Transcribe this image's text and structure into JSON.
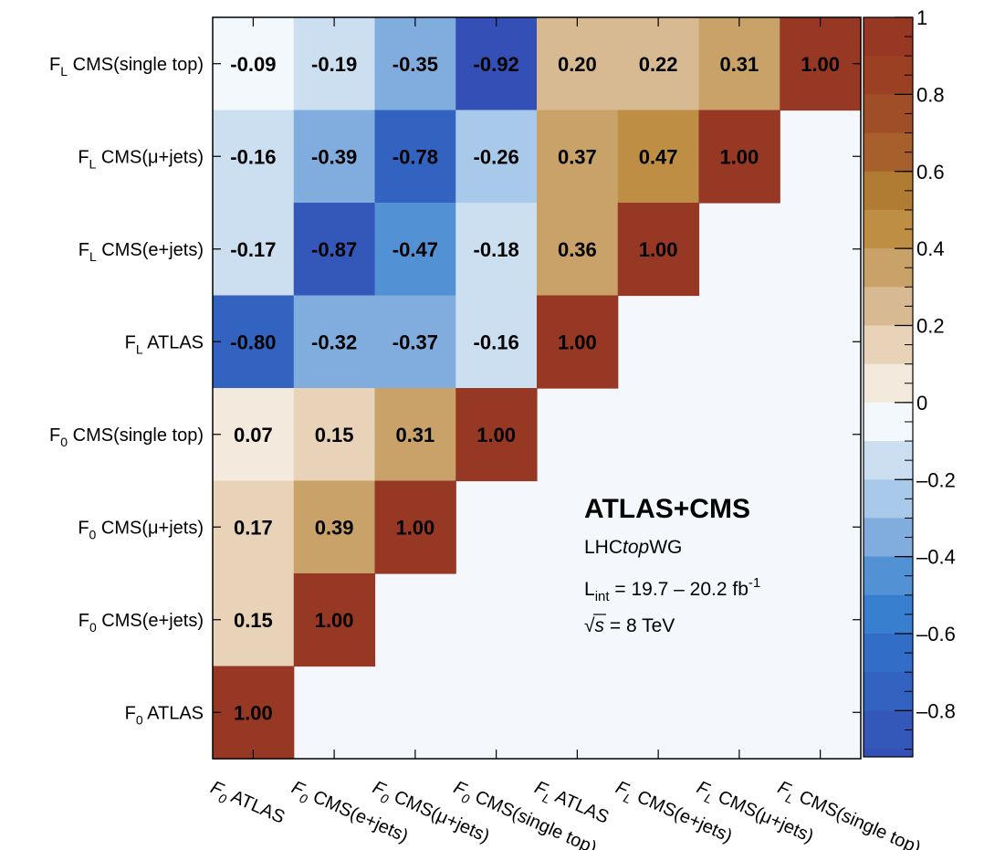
{
  "chart_data": {
    "type": "heatmap",
    "title": "",
    "xlabel": "",
    "ylabel": "",
    "x_categories": [
      {
        "sym": "F",
        "sub": "0",
        "rest": " ATLAS"
      },
      {
        "sym": "F",
        "sub": "0",
        "rest": " CMS(e+jets)"
      },
      {
        "sym": "F",
        "sub": "0",
        "rest": " CMS(μ+jets)"
      },
      {
        "sym": "F",
        "sub": "0",
        "rest": " CMS(single top)"
      },
      {
        "sym": "F",
        "sub": "L",
        "rest": " ATLAS"
      },
      {
        "sym": "F",
        "sub": "L",
        "rest": " CMS(e+jets)"
      },
      {
        "sym": "F",
        "sub": "L",
        "rest": " CMS(μ+jets)"
      },
      {
        "sym": "F",
        "sub": "L",
        "rest": " CMS(single top)"
      }
    ],
    "y_categories_top_to_bottom": [
      {
        "sym": "F",
        "sub": "L",
        "rest": " CMS(single top)"
      },
      {
        "sym": "F",
        "sub": "L",
        "rest": " CMS(μ+jets)"
      },
      {
        "sym": "F",
        "sub": "L",
        "rest": " CMS(e+jets)"
      },
      {
        "sym": "F",
        "sub": "L",
        "rest": " ATLAS"
      },
      {
        "sym": "F",
        "sub": "0",
        "rest": " CMS(single top)"
      },
      {
        "sym": "F",
        "sub": "0",
        "rest": " CMS(μ+jets)"
      },
      {
        "sym": "F",
        "sub": "0",
        "rest": " CMS(e+jets)"
      },
      {
        "sym": "F",
        "sub": "0",
        "rest": " ATLAS"
      }
    ],
    "values_rows_top_to_bottom": [
      [
        "-0.09",
        "-0.19",
        "-0.35",
        "-0.92",
        "0.20",
        "0.22",
        "0.31",
        "1.00"
      ],
      [
        "-0.16",
        "-0.39",
        "-0.78",
        "-0.26",
        "0.37",
        "0.47",
        "1.00"
      ],
      [
        "-0.17",
        "-0.87",
        "-0.47",
        "-0.18",
        "0.36",
        "1.00"
      ],
      [
        "-0.80",
        "-0.32",
        "-0.37",
        "-0.16",
        "1.00"
      ],
      [
        "0.07",
        "0.15",
        "0.31",
        "1.00"
      ],
      [
        "0.17",
        "0.39",
        "1.00"
      ],
      [
        "0.15",
        "1.00"
      ],
      [
        "1.00"
      ]
    ],
    "colorbar": {
      "range": [
        -0.92,
        1.0
      ],
      "ticks": [
        {
          "value": 1,
          "label": "1"
        },
        {
          "value": 0.8,
          "label": "0.8"
        },
        {
          "value": 0.6,
          "label": "0.6"
        },
        {
          "value": 0.4,
          "label": "0.4"
        },
        {
          "value": 0.2,
          "label": "0.2"
        },
        {
          "value": 0,
          "label": "0"
        },
        {
          "value": -0.2,
          "label": "–0.2"
        },
        {
          "value": -0.4,
          "label": "–0.4"
        },
        {
          "value": -0.6,
          "label": "–0.6"
        },
        {
          "value": -0.8,
          "label": "–0.8"
        }
      ],
      "bands": [
        {
          "lo": 0.9,
          "color": "#973824"
        },
        {
          "lo": 0.8,
          "color": "#9C4024"
        },
        {
          "lo": 0.7,
          "color": "#A04E27"
        },
        {
          "lo": 0.6,
          "color": "#A75F2B"
        },
        {
          "lo": 0.5,
          "color": "#B07B33"
        },
        {
          "lo": 0.4,
          "color": "#BE8E45"
        },
        {
          "lo": 0.3,
          "color": "#C9A26A"
        },
        {
          "lo": 0.2,
          "color": "#D8BA92"
        },
        {
          "lo": 0.1,
          "color": "#E8D3B8"
        },
        {
          "lo": 0.0,
          "color": "#F4E9DD"
        },
        {
          "lo": -0.1,
          "color": "#F3F8FC"
        },
        {
          "lo": -0.2,
          "color": "#CBDFF1"
        },
        {
          "lo": -0.3,
          "color": "#A9C9EA"
        },
        {
          "lo": -0.4,
          "color": "#80ADDE"
        },
        {
          "lo": -0.5,
          "color": "#5391D5"
        },
        {
          "lo": -0.6,
          "color": "#387FCF"
        },
        {
          "lo": -0.7,
          "color": "#326EC7"
        },
        {
          "lo": -0.8,
          "color": "#3363C1"
        },
        {
          "lo": -0.9,
          "color": "#3457BA"
        },
        {
          "lo": -0.92,
          "color": "#344FB5"
        }
      ]
    },
    "empty_color": "#F4F8FC",
    "annotation": {
      "title": "ATLAS+CMS",
      "group_pre": "LHC",
      "group_italic": "top",
      "group_post": "WG",
      "lumi_L": "L",
      "lumi_sub": "int",
      "lumi_value": " = 19.7 – 20.2 fb",
      "lumi_sup": "-1",
      "energy_root": "√",
      "energy_s": "s",
      "energy_value": " = 8 TeV"
    }
  }
}
